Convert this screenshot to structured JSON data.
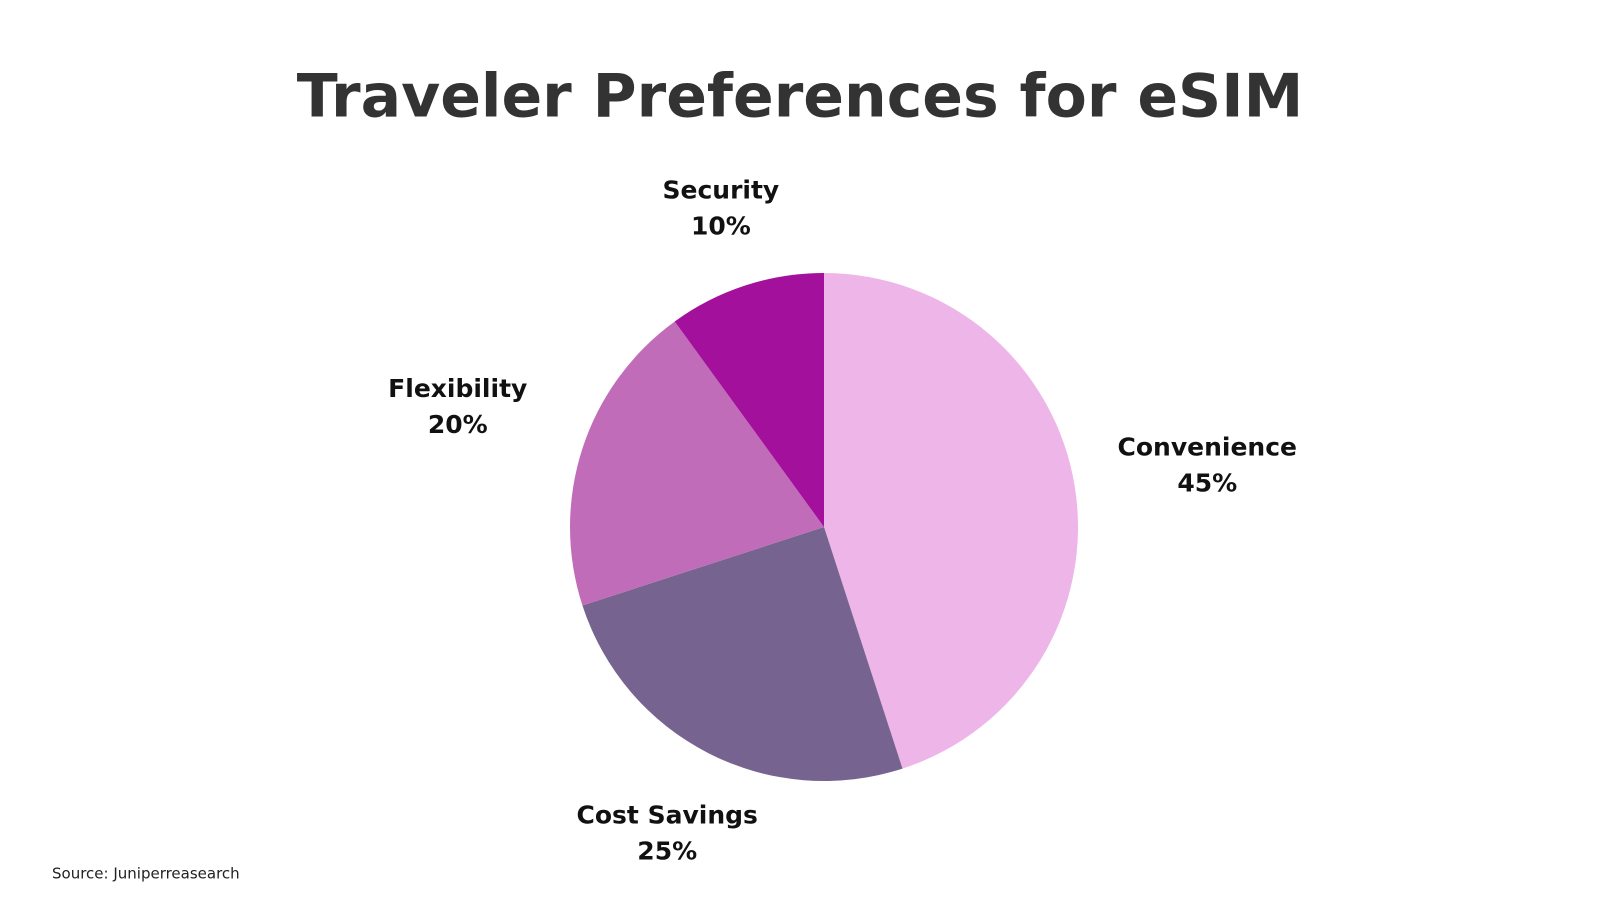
{
  "chart_data": {
    "type": "pie",
    "title": "Traveler Preferences for eSIM",
    "categories": [
      "Convenience",
      "Cost Savings",
      "Flexibility",
      "Security"
    ],
    "values": [
      45,
      25,
      20,
      10
    ],
    "value_labels": [
      "45%",
      "25%",
      "20%",
      "10%"
    ],
    "colors": [
      "#edb5e8",
      "#77638f",
      "#c06cb9",
      "#a3119c"
    ],
    "source": "Source: Juniperreasearch"
  }
}
